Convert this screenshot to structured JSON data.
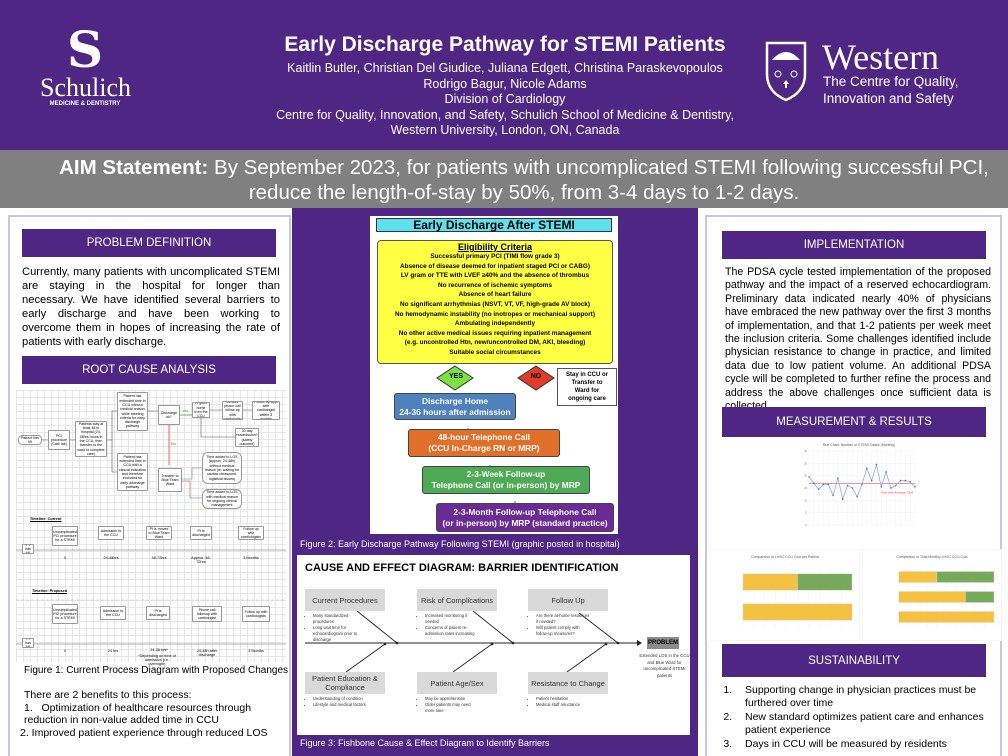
{
  "header": {
    "title": "Early Discharge Pathway for STEMI Patients",
    "authors_1": "Kaitlin Butler, Christian Del Giudice, Juliana Edgett, Christina Paraskevopoulos",
    "authors_2": "Rodrigo Bagur, Nicole Adams",
    "division": "Division of Cardiology",
    "affiliation_1": "Centre for Quality, Innovation, and Safety, Schulich School of Medicine & Dentistry,",
    "affiliation_2": "Western University, London, ON, Canada",
    "left_logo": {
      "name": "Schulich",
      "sub": "MEDICINE & DENTISTRY"
    },
    "right_logo": {
      "name": "Western",
      "sub_1": "The Centre for Quality,",
      "sub_2": "Innovation and Safety"
    }
  },
  "aim": {
    "label": "AIM Statement:",
    "text": " By September 2023, for patients with uncomplicated STEMI following successful PCI, reduce the length-of-stay by 50%, from 3-4 days to 1-2 days."
  },
  "problem": {
    "heading": "PROBLEM DEFINITION",
    "text": "Currently, many patients with uncomplicated STEMI are staying in the hospital for longer than necessary. We have identified several barriers to early discharge and have been working to overcome them in hopes of increasing the rate of patients with early discharge."
  },
  "root_cause": {
    "heading": "ROOT CAUSE ANALYSIS",
    "nodes": {
      "mi": "Patient has MI",
      "pci": "PCI procedure (Cath lab)",
      "stay": "Patients stay at least 48 in hospital (24-48hrs hours in the CCU, then transfer to the ward to complete care)",
      "ext_no_reason": "Patient has extended time in CCU without medical reason while meeting criteria for early discharge pathway",
      "ext_reason": "Patient has extended time in CCU with a clinical indication and therefore excluded for early discharge pathway",
      "discharge_ok": "Discharge ok?",
      "yes": "Yes",
      "no": "No",
      "home": "Pt goes home from the CCU",
      "phone": "24-48hr phone call follow-up with cardiologist",
      "followup": "Follow up appt with cardiologist within 3 months",
      "readmit": "30 day readmission? (safety outcome)",
      "transfer": "Transfer to Blue Team Ward",
      "los_no_reason": "Time added to LOS (approx. 24-48h) without medical reason (ie. waiting for cardiac ultrasound, logistical issues)",
      "los_reason": "Time added to LOS with medical reason for ongoing clinical management"
    },
    "timeline_current": {
      "label": "Timeline: Current",
      "start": "Pt has MI",
      "steps": [
        {
          "box": "Uncomplicated PCI procedure for a STEMI",
          "time": "0"
        },
        {
          "box": "Admission to the CCU",
          "time": "24-48hrs"
        },
        {
          "box": "Pt is moved to Blue Team Ward",
          "time": "48-72hrs"
        },
        {
          "box": "Pt is discharged",
          "time": "Approx. 48-72hrs"
        },
        {
          "box": "Follow up with cardiologists",
          "time": "3 Months"
        }
      ]
    },
    "timeline_proposed": {
      "label": "Timeline: Proposed",
      "start": "Pt has MI",
      "steps": [
        {
          "box": "Uncomplicated PCI procedure for a STEMI",
          "time": "0"
        },
        {
          "box": "Admission to the CCU",
          "time": "24 hrs"
        },
        {
          "box": "Pt is discharged",
          "time": "24-36 hrs*"
        },
        {
          "box": "Phone call followup with cardiologist",
          "time": "24-48h after discharge"
        },
        {
          "box": "Follow up with cardiologists",
          "time": "3 Months"
        }
      ],
      "note": "*Depending on time of admission (i.e. overnight)"
    },
    "caption": "Figure 1: Current Process Diagram with Proposed Changes"
  },
  "benefits": {
    "intro": "There are 2 benefits to this process:",
    "items": [
      "1.   Optimization of healthcare resources through reduction in non-value added time in CCU",
      "2. Improved patient experience through reduced LOS"
    ]
  },
  "pathway": {
    "title": "Early Discharge After STEMI",
    "criteria_heading": "Eligibility Criteria",
    "criteria": [
      "Successful primary PCI (TIMI flow grade 3)",
      "Absence of disease deemed for inpatient staged PCI or CABG)",
      "LV gram or TTE with LVEF ≥40% and the absence of thrombus",
      "No recurrence of ischemic symptoms",
      "Absence of heart failure",
      "No significant arrhythmias (NSVT, VT, VF, high-grade AV block)",
      "No hemodynamic instability (no inotropes or mechanical support)",
      "Ambulating independently",
      "No other active medical issues requiring inpatient management",
      "(e.g. uncontrolled Htn, new/uncontrolled DM, AKI, bleeding)",
      "Suitable social circumstances"
    ],
    "yes": "YES",
    "no": "NO",
    "no_action": "Stay in CCU or Transfer to Ward for ongoing care",
    "steps": [
      {
        "l1": "Discharge Home",
        "l2": "24-36 hours after admission"
      },
      {
        "l1": "48-hour Telephone Call",
        "l2": "(CCU In-Charge RN or MRP)"
      },
      {
        "l1": "2-3-Week Follow-up",
        "l2": "Telephone Call (or in-person) by MRP"
      },
      {
        "l1": "2-3-Month Follow-up Telephone Call",
        "l2": "(or in-person) by MRP (standard practice)"
      }
    ],
    "caption": "Figure 2: Early Discharge Pathway Following STEMI (graphic posted in hospital)"
  },
  "fishbone": {
    "title": "CAUSE AND EFFECT DIAGRAM: BARRIER IDENTIFICATION",
    "causes": [
      {
        "label": "Current Procedures",
        "bullets": [
          "Many standardized procedures",
          "Long wait time for echocardiogram prior to discharge"
        ]
      },
      {
        "label": "Risk of Complications",
        "bullets": [
          "Increased monitoring if needed",
          "Concerns of patient re-admission rates increasing"
        ]
      },
      {
        "label": "Follow Up",
        "bullets": [
          "Are there at-home resources if needed?",
          "Will patient comply with follow-up measures?"
        ]
      },
      {
        "label": "Patient Education & Compliance",
        "bullets": [
          "Understanding of condition",
          "Lifestyle and medical factors"
        ]
      },
      {
        "label": "Patient Age/Sex",
        "bullets": [
          "May be apprehension",
          "Older patients may need more time"
        ]
      },
      {
        "label": "Resistance to Change",
        "bullets": [
          "Patient hesitation",
          "Medical staff reluctance"
        ]
      }
    ],
    "problem_label": "PROBLEM",
    "problem_text": "Extended LOS in the CCU and Blue Ward for uncomplicated STEMI patients",
    "caption": "Figure 3: Fishbone Cause & Effect Diagram to Identify Barriers"
  },
  "implementation": {
    "heading": "IMPLEMENTATION",
    "text": "The PDSA cycle tested implementation of the proposed pathway and the impact of a reserved echocardiogram. Preliminary data indicated nearly 40% of physicians have embraced the new pathway over the first 3 months of implementation, and that 1-2 patients per week meet the inclusion criteria. Some challenges identified include physician resistance to change in practice, and limited data due to low patient volume. An additional PDSA cycle will be completed to further refine the process and address the above challenges once sufficient data is collected."
  },
  "measurement": {
    "heading": "MEASUREMENT & RESULTS"
  },
  "chart_data": [
    {
      "type": "line",
      "title": "Run Chart: Number of STEMI Cases (Monthly)",
      "ylim": [
        0,
        30
      ],
      "values": [
        19.5,
        17,
        14.5,
        16.5,
        16.5,
        12,
        19,
        10.5,
        16,
        15,
        11.5,
        16.5,
        23,
        18,
        24.5,
        15.5,
        21.5,
        15,
        16,
        18,
        18,
        17.5,
        15.5
      ],
      "average": 16.8,
      "average_label": "Two-Year Average",
      "color": "#8faadc",
      "avg_color": "#ff7f7f"
    },
    {
      "type": "bar",
      "title": "Comparison of LHSC CCU Cost per Patient",
      "orientation": "horizontal-stacked",
      "series": [
        {
          "name": "Cost",
          "color": "#f4c142",
          "values": [
            50,
            100
          ]
        },
        {
          "name": "Savings",
          "color": "#77a95a",
          "values": [
            50,
            0
          ]
        }
      ]
    },
    {
      "type": "bar",
      "title": "Comparison of Total Monthly LHSC CCU Cost",
      "orientation": "horizontal-stacked",
      "series": [
        {
          "name": "Cost",
          "color": "#f4c142",
          "values": [
            40,
            70,
            100
          ]
        },
        {
          "name": "Savings",
          "color": "#77a95a",
          "values": [
            60,
            30,
            0
          ]
        }
      ]
    }
  ],
  "sustainability": {
    "heading": "SUSTAINABILITY",
    "items": [
      "Supporting change in physician practices must be furthered over time",
      "New standard optimizes patient care and enhances patient experience",
      "Days in CCU will be measured by residents"
    ]
  }
}
